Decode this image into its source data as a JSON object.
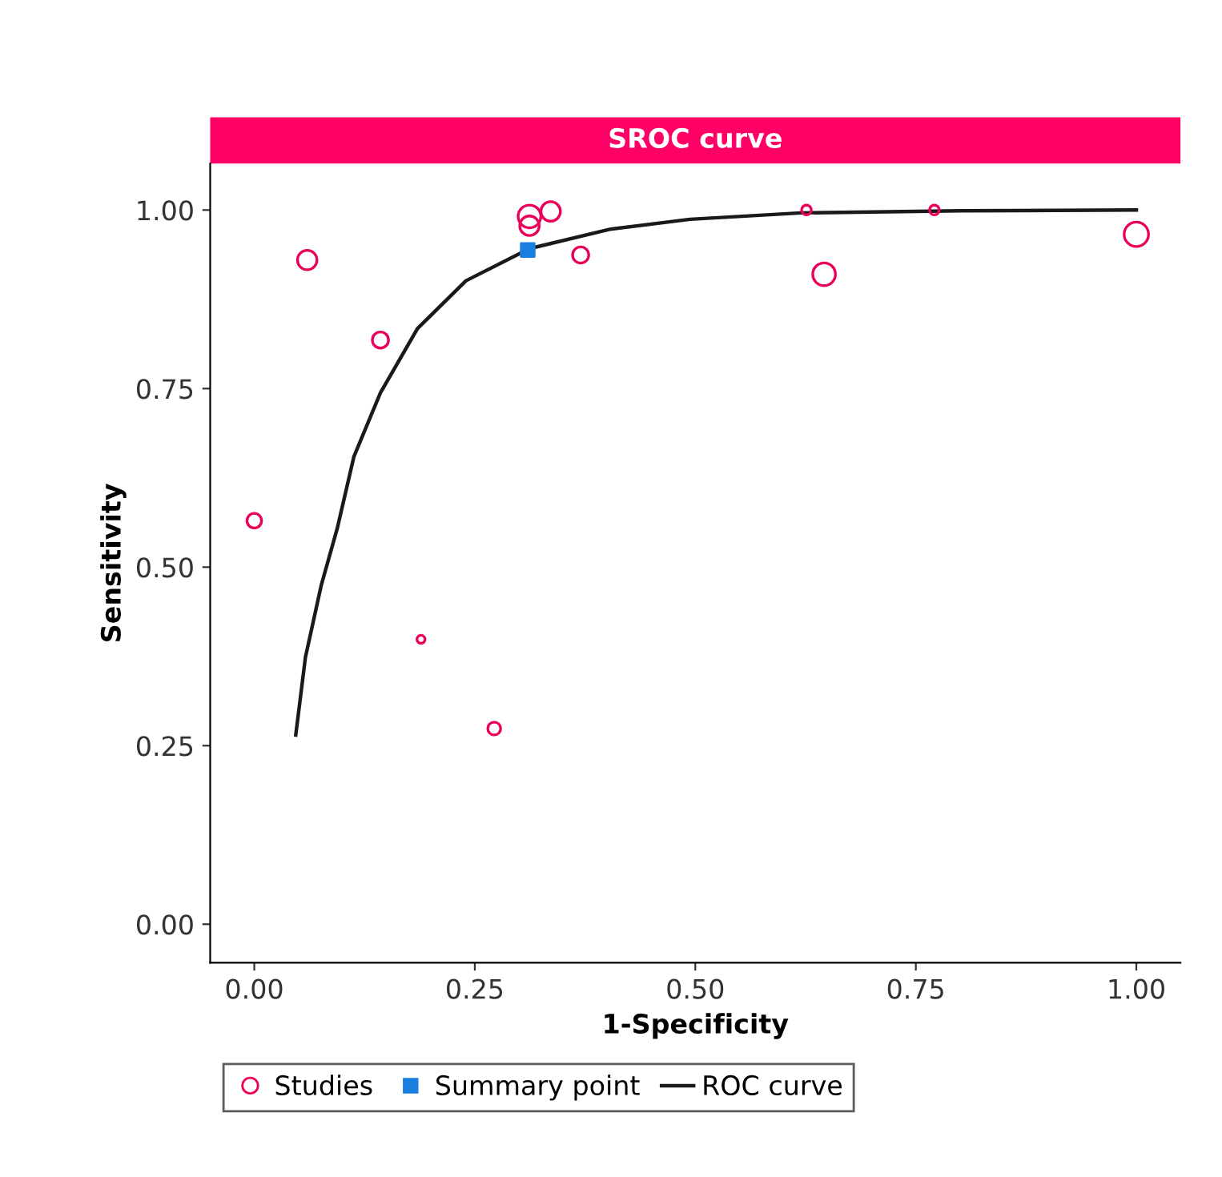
{
  "chart_data": {
    "type": "bubble",
    "title": "SROC curve",
    "xlabel": "1-Specificity",
    "ylabel": "Sensitivity",
    "xlim": [
      -0.05,
      1.05
    ],
    "ylim": [
      -0.054,
      1.065
    ],
    "xticks": [
      {
        "value": 0,
        "label": "0.00"
      },
      {
        "value": 0.25,
        "label": "0.25"
      },
      {
        "value": 0.5,
        "label": "0.50"
      },
      {
        "value": 0.75,
        "label": "0.75"
      },
      {
        "value": 1,
        "label": "1.00"
      }
    ],
    "yticks": [
      {
        "value": 0,
        "label": "0.00"
      },
      {
        "value": 0.25,
        "label": "0.25"
      },
      {
        "value": 0.5,
        "label": "0.50"
      },
      {
        "value": 0.75,
        "label": "0.75"
      },
      {
        "value": 1,
        "label": "1.00"
      }
    ],
    "grid": false,
    "legend": "bottom",
    "series": [
      {
        "name": "Studies",
        "marker": "circle",
        "color": "#e8005a",
        "x": [
          0.0,
          0.06,
          0.143,
          0.189,
          0.272,
          0.312,
          0.312,
          0.336,
          0.37,
          0.626,
          0.646,
          0.771,
          1.0
        ],
        "values": [
          0.565,
          0.93,
          0.818,
          0.399,
          0.274,
          0.991,
          0.978,
          0.998,
          0.937,
          1.0,
          0.91,
          1.0,
          0.966
        ],
        "sizes": [
          0.36,
          0.64,
          0.44,
          0.11,
          0.28,
          0.87,
          0.64,
          0.64,
          0.44,
          0.16,
          0.87,
          0.16,
          1
        ]
      },
      {
        "name": "Summary point",
        "type": "scatter",
        "marker": "square",
        "color": "#1a7fe0",
        "x": [
          0.31
        ],
        "values": [
          0.944
        ]
      },
      {
        "name": "ROC curve",
        "type": "line",
        "marker": "none",
        "line_style": "solid",
        "color": "#1a1a1a",
        "x": [
          0.047,
          0.058,
          0.076,
          0.094,
          0.113,
          0.143,
          0.185,
          0.24,
          0.312,
          0.403,
          0.494,
          0.62,
          0.8,
          1.0
        ],
        "values": [
          0.265,
          0.374,
          0.475,
          0.554,
          0.655,
          0.744,
          0.834,
          0.901,
          0.946,
          0.973,
          0.987,
          0.996,
          0.999,
          1.0
        ]
      }
    ]
  }
}
